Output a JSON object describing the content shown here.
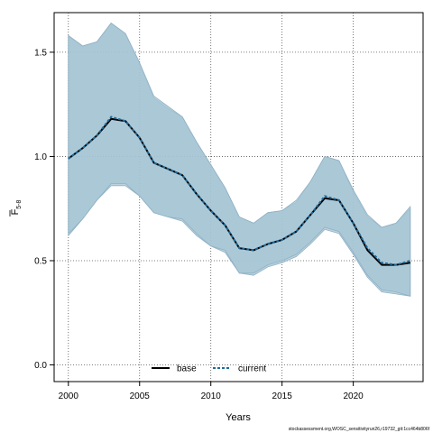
{
  "chart_data": {
    "type": "line",
    "title": "",
    "xlabel": "Years",
    "ylabel": {
      "main": "F",
      "sub": "5-8"
    },
    "xlim": [
      1999.0,
      2024.9
    ],
    "ylim": [
      -0.08,
      1.69
    ],
    "xticks": [
      2000,
      2005,
      2010,
      2015,
      2020
    ],
    "xtick_labels": [
      "2000",
      "2005",
      "2010",
      "2015",
      "2020"
    ],
    "yticks": [
      0.0,
      0.5,
      1.0,
      1.5
    ],
    "ytick_labels": [
      "0.0",
      "0.5",
      "1.0",
      "1.5"
    ],
    "grid": true,
    "legend_position": "bottom-center",
    "x": [
      2000,
      2001,
      2002,
      2003,
      2004,
      2005,
      2006,
      2007,
      2008,
      2009,
      2010,
      2011,
      2012,
      2013,
      2014,
      2015,
      2016,
      2017,
      2018,
      2019,
      2020,
      2021,
      2022,
      2023,
      2024
    ],
    "series": [
      {
        "name": "base",
        "color": "#000000",
        "line_style": "solid",
        "values": [
          0.99,
          1.04,
          1.1,
          1.18,
          1.17,
          1.09,
          0.97,
          0.94,
          0.91,
          0.82,
          0.74,
          0.67,
          0.56,
          0.55,
          0.58,
          0.6,
          0.64,
          0.72,
          0.8,
          0.79,
          0.68,
          0.55,
          0.48,
          0.48,
          0.49
        ],
        "upper": [
          1.58,
          1.53,
          1.55,
          1.64,
          1.59,
          1.45,
          1.28,
          1.23,
          1.19,
          1.07,
          0.96,
          0.85,
          0.71,
          0.68,
          0.73,
          0.74,
          0.78,
          0.88,
          1.0,
          0.98,
          0.83,
          0.71,
          0.66,
          0.68,
          0.75
        ],
        "lower": [
          0.62,
          0.7,
          0.79,
          0.86,
          0.86,
          0.81,
          0.73,
          0.71,
          0.69,
          0.62,
          0.57,
          0.54,
          0.44,
          0.43,
          0.47,
          0.49,
          0.52,
          0.58,
          0.65,
          0.63,
          0.53,
          0.42,
          0.35,
          0.34,
          0.33
        ],
        "band_color": "#a6c4d4"
      },
      {
        "name": "current",
        "color": "#1f6b9a",
        "line_style": "dashed",
        "values": [
          0.99,
          1.04,
          1.1,
          1.19,
          1.17,
          1.09,
          0.97,
          0.94,
          0.91,
          0.82,
          0.74,
          0.67,
          0.56,
          0.55,
          0.58,
          0.6,
          0.64,
          0.72,
          0.81,
          0.79,
          0.68,
          0.56,
          0.49,
          0.48,
          0.5
        ],
        "upper": [
          1.58,
          1.53,
          1.55,
          1.64,
          1.59,
          1.45,
          1.29,
          1.24,
          1.19,
          1.07,
          0.96,
          0.85,
          0.71,
          0.68,
          0.73,
          0.74,
          0.79,
          0.88,
          1.0,
          0.98,
          0.84,
          0.72,
          0.66,
          0.68,
          0.76
        ],
        "lower": [
          0.63,
          0.7,
          0.79,
          0.87,
          0.87,
          0.81,
          0.73,
          0.71,
          0.7,
          0.63,
          0.57,
          0.55,
          0.44,
          0.44,
          0.48,
          0.5,
          0.53,
          0.59,
          0.66,
          0.64,
          0.54,
          0.43,
          0.36,
          0.35,
          0.33
        ],
        "band_color": "#a6c4d4"
      }
    ]
  },
  "footer": "stockassessment.org,WOSC_sensitivityrun26,r19732_git:1cc464b806f"
}
